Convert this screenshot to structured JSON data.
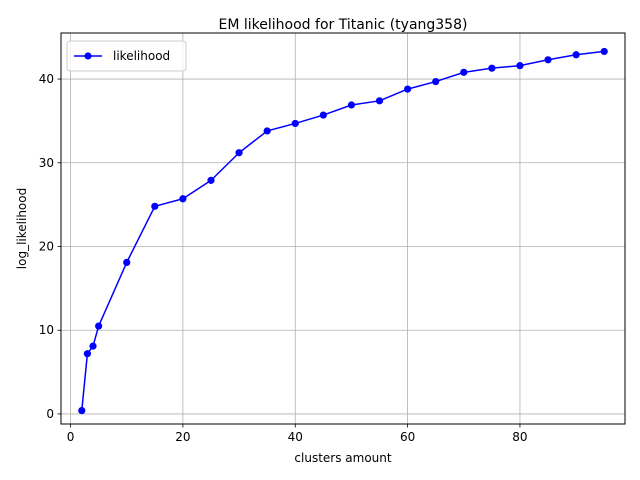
{
  "chart_data": {
    "type": "line",
    "title": "EM likelihood for Titanic (tyang358)",
    "xlabel": "clusters amount",
    "ylabel": "log_likelihood",
    "xlim": [
      -1.7,
      98.7
    ],
    "ylim": [
      -1.2,
      45.5
    ],
    "xticks": [
      0,
      20,
      40,
      60,
      80
    ],
    "yticks": [
      0,
      10,
      20,
      30,
      40
    ],
    "grid": true,
    "legend_position": "upper-left",
    "series": [
      {
        "name": "likelihood",
        "color": "#0000ff",
        "marker": "circle",
        "x": [
          2,
          3,
          4,
          5,
          10,
          15,
          20,
          25,
          30,
          35,
          40,
          45,
          50,
          55,
          60,
          65,
          70,
          75,
          80,
          85,
          90,
          95
        ],
        "y": [
          0.4,
          7.2,
          8.1,
          10.5,
          18.1,
          24.8,
          25.7,
          27.9,
          31.2,
          33.8,
          34.7,
          35.7,
          36.9,
          37.4,
          38.8,
          39.7,
          40.8,
          41.3,
          41.6,
          42.3,
          42.9,
          43.3
        ]
      }
    ]
  }
}
